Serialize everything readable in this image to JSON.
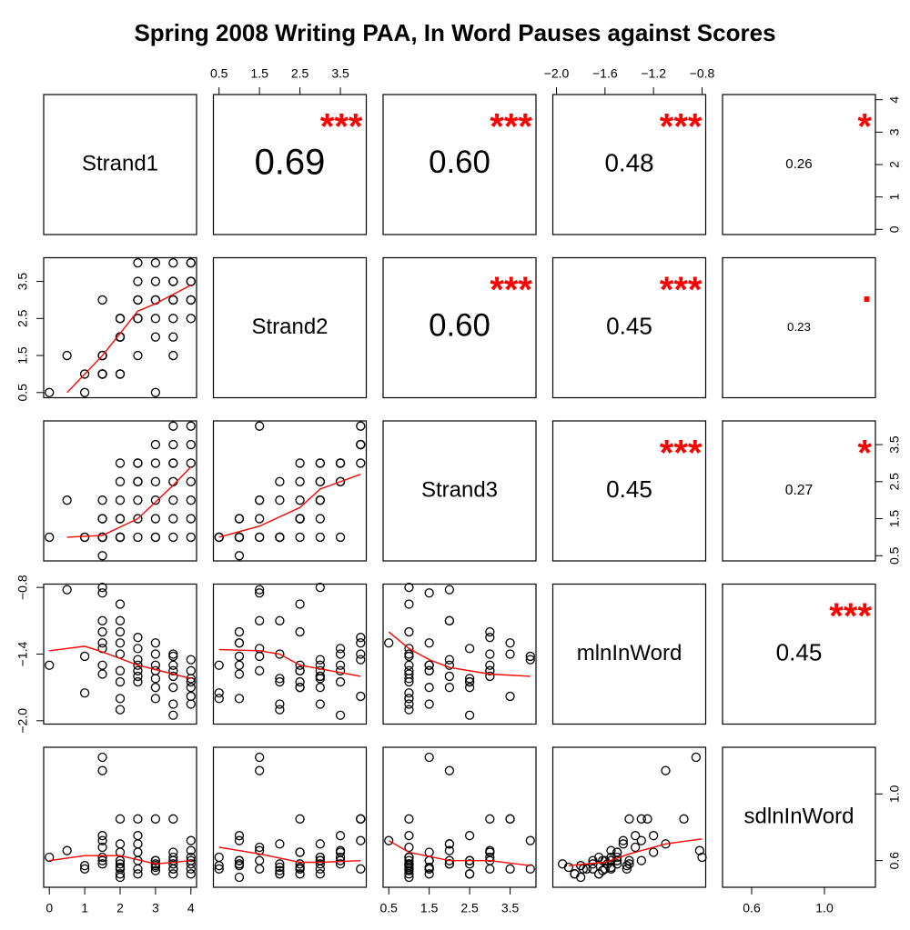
{
  "chart_data": {
    "type": "scatter-matrix",
    "title": "Spring 2008 Writing PAA, In Word Pauses against Scores",
    "point_color": "#000000",
    "smooth_color": "#ff0000",
    "star_color": "#ff0000",
    "variables": [
      {
        "name": "Strand1",
        "lim": [
          -0.16,
          4.16
        ],
        "xticks": [
          0,
          1,
          2,
          3,
          4
        ],
        "yticks": [
          0,
          1,
          2,
          3,
          4
        ],
        "values": [
          0,
          0.5,
          1,
          1,
          1.5,
          1.5,
          1.5,
          1.5,
          1.5,
          1.5,
          1.5,
          1.5,
          2,
          2,
          2,
          2,
          2,
          2,
          2,
          2,
          2,
          2.5,
          2.5,
          2.5,
          2.5,
          2.5,
          2.5,
          2.5,
          3,
          3,
          3,
          3,
          3,
          3,
          3,
          3.5,
          3.5,
          3.5,
          3.5,
          3.5,
          3.5,
          3.5,
          4,
          4,
          4,
          4,
          4,
          4,
          3.5,
          4
        ]
      },
      {
        "name": "Strand2",
        "lim": [
          0.36,
          4.14
        ],
        "xticks": [
          0.5,
          1.5,
          2.5,
          3.5
        ],
        "yticks": [
          0.5,
          1.5,
          2.5,
          3.5
        ],
        "values": [
          0.5,
          1.5,
          1,
          0.5,
          3,
          1.5,
          1.5,
          1,
          1,
          1.5,
          1,
          1,
          2.5,
          2,
          2.5,
          1,
          2,
          2.5,
          2,
          1,
          2,
          4,
          3.5,
          3,
          2.5,
          1.5,
          3,
          2.5,
          4,
          3.5,
          3,
          2.5,
          2,
          0.5,
          3,
          4,
          3.5,
          3,
          2.5,
          2,
          3.5,
          3,
          4,
          3.5,
          3,
          2.5,
          4,
          3,
          1.5,
          3.5
        ]
      },
      {
        "name": "Strand3",
        "lim": [
          0.36,
          4.14
        ],
        "xticks": [
          0.5,
          1.5,
          2.5,
          3.5
        ],
        "yticks": [
          0.5,
          1.5,
          2.5,
          3.5
        ],
        "values": [
          1,
          2,
          1,
          1,
          1,
          1.5,
          2,
          1,
          0.5,
          1,
          1.5,
          1,
          1,
          2,
          3,
          1.5,
          1,
          1.5,
          2.5,
          1,
          1,
          3,
          2.5,
          2,
          1.5,
          1,
          3,
          2.5,
          3.5,
          3,
          2,
          1.5,
          1,
          1,
          2.5,
          3.5,
          3,
          2,
          1.5,
          1,
          2.5,
          3,
          4,
          3,
          2.5,
          2,
          3.5,
          1.5,
          4,
          1
        ]
      },
      {
        "name": "mlnInWord",
        "lim": [
          -2.03,
          -0.77
        ],
        "xticks": [
          {
            "value": -2,
            "label": "−2.0"
          },
          {
            "value": -1.6,
            "label": "−1.6"
          },
          {
            "value": -1.2,
            "label": "−1.2"
          },
          {
            "value": -0.8,
            "label": "−0.8"
          }
        ],
        "yticks": [
          {
            "value": -2,
            "label": "−2.0"
          },
          {
            "value": -1.4,
            "label": "−1.4"
          },
          {
            "value": -0.8,
            "label": "−0.8"
          }
        ],
        "values": [
          -1.5,
          -0.82,
          -1.42,
          -1.75,
          -0.8,
          -0.85,
          -1.1,
          -1.2,
          -1.3,
          -1.35,
          -1.5,
          -1.58,
          -0.95,
          -1.1,
          -1.2,
          -1.3,
          -1.4,
          -1.55,
          -1.65,
          -1.8,
          -1.9,
          -1.25,
          -1.35,
          -1.45,
          -1.5,
          -1.55,
          -1.6,
          -1.65,
          -1.3,
          -1.4,
          -1.5,
          -1.55,
          -1.62,
          -1.8,
          -1.7,
          -1.4,
          -1.5,
          -1.6,
          -1.7,
          -1.85,
          -1.95,
          -1.55,
          -1.45,
          -1.55,
          -1.62,
          -1.7,
          -1.78,
          -1.85,
          -1.42,
          -1.65
        ]
      },
      {
        "name": "sdlnInWord",
        "lim": [
          0.44,
          1.28
        ],
        "xticks": [
          0.6,
          {
            "value": 1,
            "label": "1.0"
          }
        ],
        "yticks": [
          0.6,
          {
            "value": 1,
            "label": "1.0"
          }
        ],
        "values": [
          0.62,
          0.66,
          0.57,
          0.55,
          0.62,
          1.22,
          1.14,
          0.75,
          0.72,
          0.68,
          0.6,
          0.58,
          0.85,
          0.7,
          0.65,
          0.6,
          0.58,
          0.55,
          0.52,
          0.5,
          0.56,
          0.85,
          0.75,
          0.7,
          0.65,
          0.6,
          0.55,
          0.52,
          0.85,
          0.6,
          0.58,
          0.56,
          0.54,
          0.57,
          0.6,
          0.85,
          0.65,
          0.6,
          0.55,
          0.52,
          0.58,
          0.62,
          0.72,
          0.66,
          0.6,
          0.58,
          0.55,
          0.52,
          0.55,
          0.62
        ]
      }
    ],
    "correlations": [
      {
        "values": [
          0.69,
          0.6,
          0.48,
          0.26
        ],
        "value_labels": [
          "0.69",
          "0.60",
          "0.48",
          "0.26"
        ],
        "stars": [
          "***",
          "***",
          "***",
          "*"
        ]
      },
      {
        "values": [
          0.6,
          0.45,
          0.23
        ],
        "value_labels": [
          "0.60",
          "0.45",
          "0.23"
        ],
        "stars": [
          "***",
          "***",
          "."
        ]
      },
      {
        "values": [
          0.45,
          0.27
        ],
        "value_labels": [
          "0.45",
          "0.27"
        ],
        "stars": [
          "***",
          "*"
        ]
      },
      {
        "values": [
          0.45
        ],
        "value_labels": [
          "0.45"
        ],
        "stars": [
          "***"
        ]
      }
    ],
    "smooth": [
      [
        {
          "x": [
            0.5,
            1.5,
            2.5,
            3,
            4
          ],
          "y": [
            0.5,
            1.5,
            2.7,
            2.9,
            3.4
          ]
        }
      ],
      [
        {
          "x": [
            0.5,
            1.5,
            2.5,
            3.5,
            4
          ],
          "y": [
            1.0,
            1.05,
            1.5,
            2.4,
            2.9
          ]
        },
        {
          "x": [
            0.5,
            1.5,
            2.5,
            3,
            4
          ],
          "y": [
            1.0,
            1.3,
            1.8,
            2.3,
            2.7
          ]
        }
      ],
      [
        {
          "x": [
            0,
            1,
            1.5,
            2.5,
            4
          ],
          "y": [
            -1.37,
            -1.33,
            -1.38,
            -1.5,
            -1.62
          ]
        },
        {
          "x": [
            0.5,
            1.5,
            2,
            2.5,
            4
          ],
          "y": [
            -1.36,
            -1.37,
            -1.4,
            -1.5,
            -1.6
          ]
        },
        {
          "x": [
            0.5,
            1,
            1.5,
            2,
            3,
            4
          ],
          "y": [
            -1.2,
            -1.35,
            -1.45,
            -1.52,
            -1.58,
            -1.6
          ]
        }
      ],
      [
        {
          "x": [
            0,
            1,
            2,
            3,
            4
          ],
          "y": [
            0.6,
            0.63,
            0.63,
            0.58,
            0.6
          ]
        },
        {
          "x": [
            0.5,
            1.5,
            2.5,
            3,
            4
          ],
          "y": [
            0.68,
            0.64,
            0.59,
            0.59,
            0.6
          ]
        },
        {
          "x": [
            0.5,
            1,
            2,
            3,
            4
          ],
          "y": [
            0.72,
            0.65,
            0.6,
            0.6,
            0.57
          ]
        },
        {
          "x": [
            -1.9,
            -1.6,
            -1.4,
            -1.1,
            -0.8
          ],
          "y": [
            0.57,
            0.59,
            0.64,
            0.7,
            0.73
          ]
        }
      ]
    ]
  }
}
